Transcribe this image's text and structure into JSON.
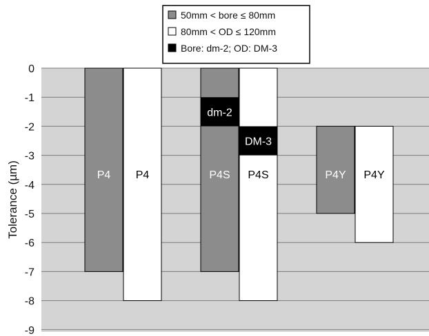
{
  "chart_data": {
    "type": "bar",
    "ylabel": "Tolerance (µm)",
    "ylim": [
      -9,
      0
    ],
    "yticks": [
      0,
      -1,
      -2,
      -3,
      -4,
      -5,
      -6,
      -7,
      -8,
      -9
    ],
    "grid": true,
    "legend_position": "top-center",
    "series": [
      {
        "name": "50mm < bore ≤ 80mm",
        "color": "#8c8c8c",
        "label_color": "#ffffff"
      },
      {
        "name": "80mm < OD ≤ 120mm",
        "color": "#ffffff",
        "label_color": "#000000"
      },
      {
        "name": "Bore: dm-2; OD: DM-3",
        "color": "#000000",
        "label_color": "#ffffff"
      }
    ],
    "bars": [
      {
        "series": 0,
        "top": 0,
        "bottom": -7,
        "label": "P4"
      },
      {
        "series": 1,
        "top": 0,
        "bottom": -8,
        "label": "P4"
      },
      {
        "series": 0,
        "top": 0,
        "bottom": -7,
        "label": "P4S"
      },
      {
        "series": 1,
        "top": 0,
        "bottom": -8,
        "label": "P4S"
      },
      {
        "series": 0,
        "top": -2,
        "bottom": -5,
        "label": "P4Y"
      },
      {
        "series": 1,
        "top": -2,
        "bottom": -6,
        "label": "P4Y"
      }
    ],
    "annotations": [
      {
        "bar": 2,
        "series": 2,
        "top": -1,
        "bottom": -2,
        "label": "dm-2"
      },
      {
        "bar": 3,
        "series": 2,
        "top": -2,
        "bottom": -3,
        "label": "DM-3"
      }
    ]
  }
}
